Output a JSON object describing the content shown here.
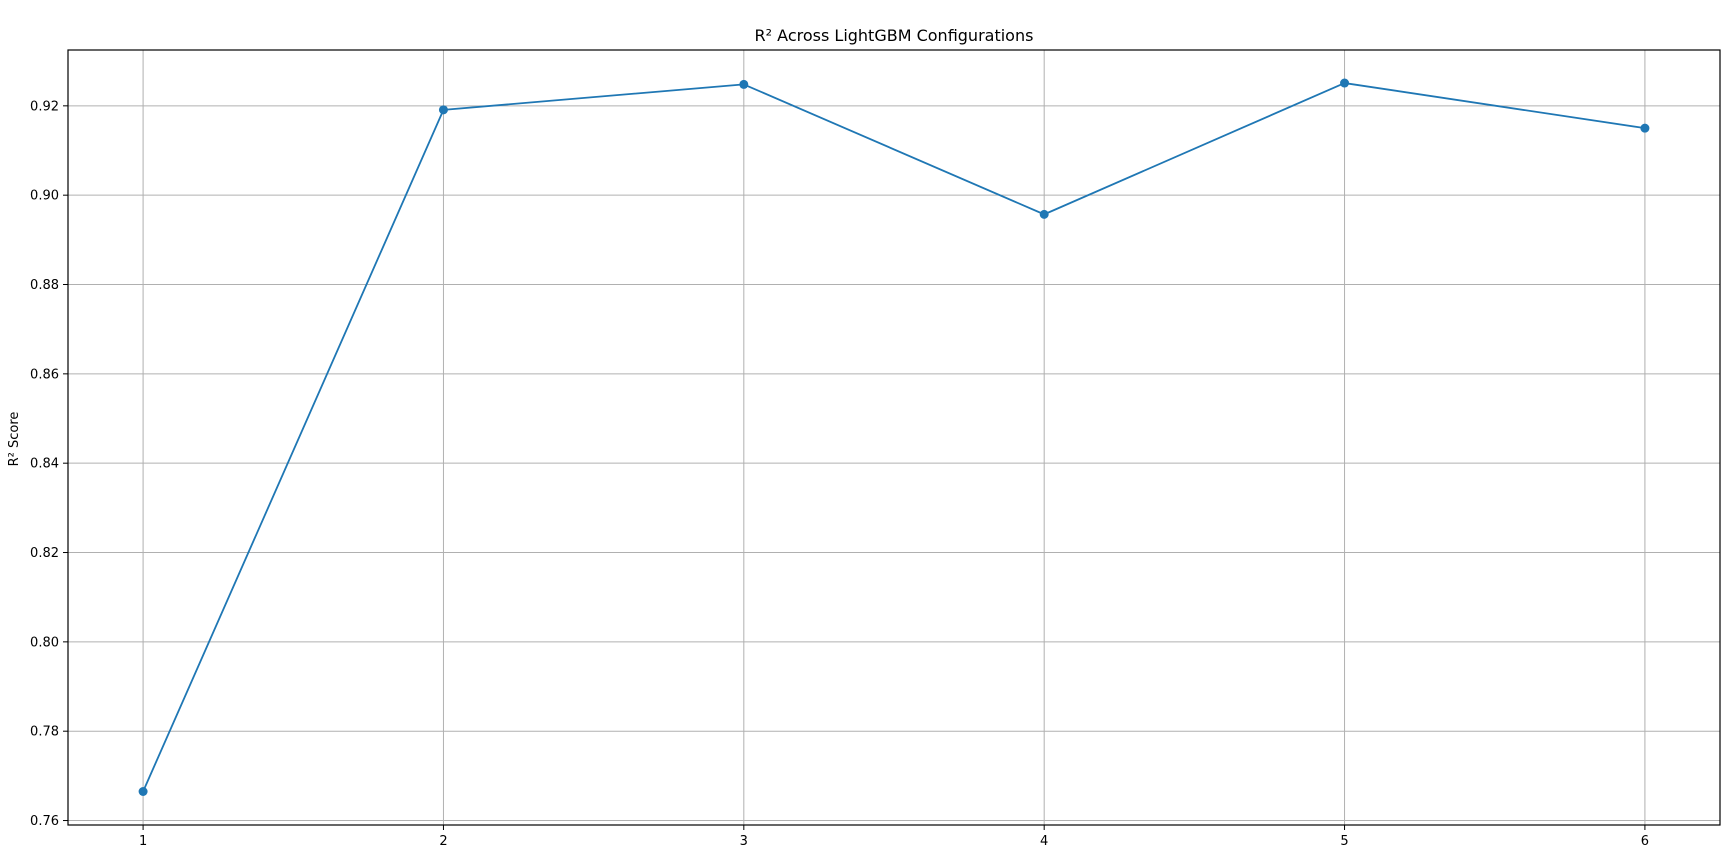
{
  "chart_data": {
    "type": "line",
    "title": "R² Across LightGBM Configurations",
    "xlabel": "",
    "ylabel": "R² Score",
    "x": [
      1,
      2,
      3,
      4,
      5,
      6
    ],
    "series": [
      {
        "values": [
          0.7665,
          0.9191,
          0.9248,
          0.8957,
          0.9251,
          0.915
        ]
      }
    ],
    "xlim": [
      0.75,
      6.25
    ],
    "ylim": [
      0.759,
      0.9325
    ],
    "xticks": [
      "1",
      "2",
      "3",
      "4",
      "5",
      "6"
    ],
    "yticks": [
      "0.76",
      "0.78",
      "0.80",
      "0.82",
      "0.84",
      "0.86",
      "0.88",
      "0.90",
      "0.92"
    ],
    "grid": true,
    "markers": true,
    "colors": {
      "line": "#1f77b4",
      "grid": "#b0b0b0",
      "axis": "#000000"
    }
  }
}
